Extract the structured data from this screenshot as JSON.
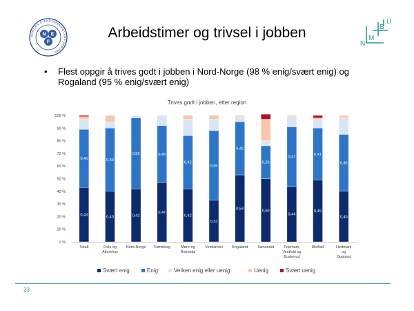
{
  "slide": {
    "title": "Arbeidstimer og trivsel i jobben",
    "bullet": "Flest oppgir å trives godt i jobben i Nord-Norge (98 % enig/svært enig) og Rogaland (95 % enig/svært enig)",
    "page_number": "23"
  },
  "logo_left": {
    "letters": [
      "N",
      "E",
      "F"
    ],
    "ring_text": "NORGES EIENDOMSMEGLERFORBUND"
  },
  "logo_right": {
    "letters": [
      "N",
      "M",
      "B",
      "U"
    ],
    "color": "#2a9a8e"
  },
  "chart_data": {
    "type": "bar",
    "stacked": true,
    "title": "Trives godt i jobben, etter region",
    "categories": [
      "Totalt",
      "Oslo og\nAkershus",
      "Nord-Norge",
      "Trøndelag",
      "Møre og\nRomsdal",
      "Vestlandet",
      "Rogaland",
      "Sørlandet",
      "Telemark,\nVestfold og\nBuskerud",
      "Østfold",
      "Hedmark\nog\nOppland"
    ],
    "series": [
      {
        "name": "Svært enig",
        "color": "#0d2a6e",
        "values": [
          0.43,
          0.4,
          0.42,
          0.47,
          0.42,
          0.33,
          0.53,
          0.5,
          0.44,
          0.49,
          0.4
        ],
        "labels": [
          "0,43",
          "0,40",
          "0,42",
          "0,47",
          "0,42",
          "0,33",
          "0,53",
          "0,50",
          "0,44",
          "0,49",
          "0,40"
        ]
      },
      {
        "name": "Enig",
        "color": "#2e75c7",
        "values": [
          0.46,
          0.5,
          0.56,
          0.45,
          0.42,
          0.55,
          0.42,
          0.26,
          0.47,
          0.41,
          0.45
        ],
        "labels": [
          "0,46",
          "0,50",
          "0,56",
          "0,45",
          "0,42",
          "0,55",
          "0,42",
          "0,26",
          "0,47",
          "0,41",
          "0,45"
        ]
      },
      {
        "name": "Verken enig eller uenig",
        "color": "#dbe6f5",
        "values": [
          0.08,
          0.05,
          0.02,
          0.08,
          0.13,
          0.09,
          0.04,
          0.04,
          0.08,
          0.07,
          0.13
        ]
      },
      {
        "name": "Uenig",
        "color": "#f7c6ad",
        "values": [
          0.02,
          0.05,
          0.0,
          0.0,
          0.03,
          0.03,
          0.01,
          0.17,
          0.01,
          0.01,
          0.02
        ]
      },
      {
        "name": "Svært uenig",
        "color": "#b3121c",
        "values": [
          0.01,
          0.0,
          0.0,
          0.0,
          0.0,
          0.0,
          0.0,
          0.04,
          0.0,
          0.02,
          0.0
        ]
      }
    ],
    "ylim": [
      0,
      1
    ],
    "yticks": [
      "0 %",
      "10 %",
      "20 %",
      "30 %",
      "40 %",
      "50 %",
      "60 %",
      "70 %",
      "80 %",
      "90 %",
      "100 %"
    ],
    "legend_position": "bottom",
    "grid": false
  }
}
